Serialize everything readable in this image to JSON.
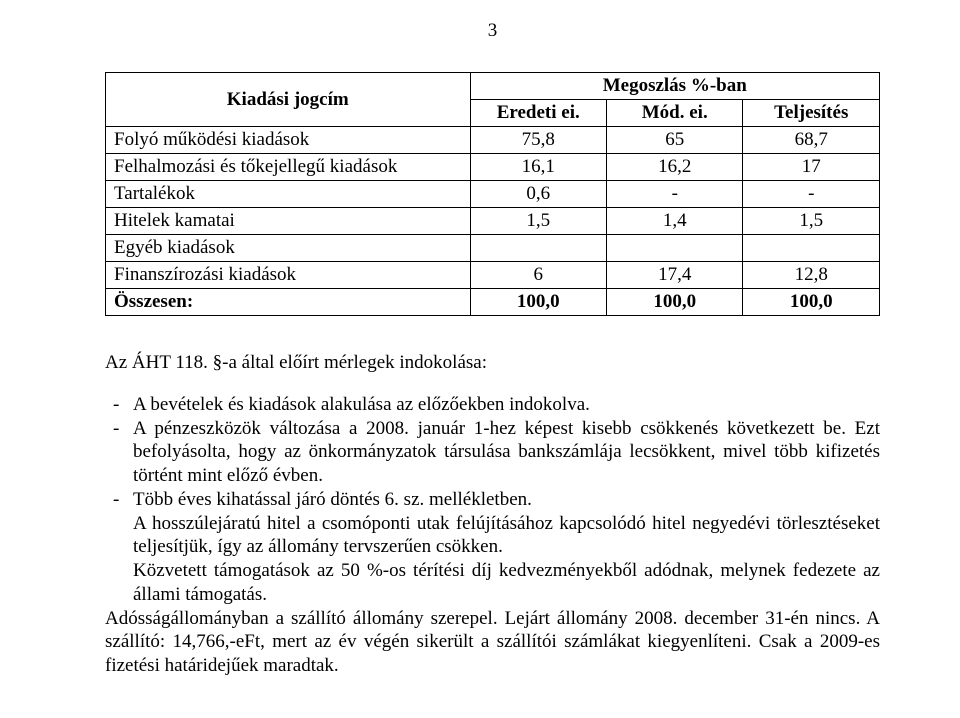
{
  "page_number": "3",
  "table": {
    "header_row_label": "Kiadási jogcím",
    "header_span": "Megoszlás %-ban",
    "subheaders": [
      "Eredeti ei.",
      "Mód. ei.",
      "Teljesítés"
    ],
    "rows": [
      {
        "label": "Folyó működési kiadások",
        "c1": "75,8",
        "c2": "65",
        "c3": "68,7"
      },
      {
        "label": "Felhalmozási és tőkejellegű kiadások",
        "c1": "16,1",
        "c2": "16,2",
        "c3": "17"
      },
      {
        "label": "Tartalékok",
        "c1": "0,6",
        "c2": "-",
        "c3": "-"
      },
      {
        "label": "Hitelek kamatai",
        "c1": "1,5",
        "c2": "1,4",
        "c3": "1,5"
      },
      {
        "label": "Egyéb kiadások",
        "c1": "",
        "c2": "",
        "c3": ""
      },
      {
        "label": "Finanszírozási kiadások",
        "c1": "6",
        "c2": "17,4",
        "c3": "12,8"
      }
    ],
    "total_row": {
      "label": "Összesen:",
      "c1": "100,0",
      "c2": "100,0",
      "c3": "100,0"
    }
  },
  "section_title": "Az ÁHT 118. §-a által előírt mérlegek indokolása:",
  "bullets": {
    "b1": "A bevételek és kiadások alakulása az előzőekben indokolva.",
    "b2": "A pénzeszközök változása a 2008. január 1-hez képest kisebb csökkenés következett be. Ezt befolyásolta, hogy az önkormányzatok társulása bankszámlája lecsökkent, mivel több kifizetés történt mint előző évben.",
    "b3": "Több éves kihatással járó döntés 6. sz. mellékletben."
  },
  "paras": {
    "p1": "A hosszúlejáratú hitel a csomóponti utak felújításához kapcsolódó hitel negyedévi törlesztéseket teljesítjük, így az állomány tervszerűen csökken.",
    "p2": "Közvetett támogatások az 50 %-os térítési díj kedvezményekből adódnak, melynek fedezete az állami támogatás.",
    "p3": "Adósságállományban a szállító állomány szerepel. Lejárt állomány 2008. december 31-én nincs. A szállító: 14,766,-eFt, mert az év végén sikerült a szállítói számlákat kiegyenlíteni. Csak a 2009-es fizetési határidejűek maradtak."
  }
}
